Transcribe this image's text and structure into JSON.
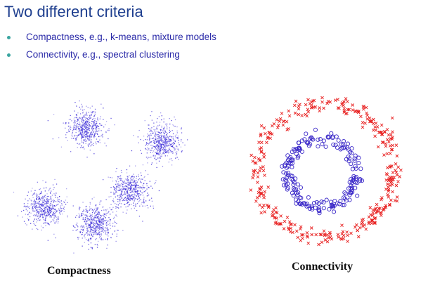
{
  "slide": {
    "title": "Two different criteria",
    "bullets": [
      "Compactness, e.g., k-means, mixture models",
      "Connectivity, e.g., spectral clustering"
    ]
  },
  "figures": {
    "compactness": {
      "caption": "Compactness",
      "point_color": "#3a2ad8",
      "clusters": 5
    },
    "connectivity": {
      "caption": "Connectivity",
      "outer_ring": {
        "marker": "x",
        "color": "#e82020"
      },
      "inner_ring": {
        "marker": "o",
        "color": "#3a28c8"
      }
    }
  },
  "colors": {
    "title": "#1f3f8f",
    "bullet_text": "#2a2aa8",
    "bullet_dot": "#3aa5a0"
  }
}
